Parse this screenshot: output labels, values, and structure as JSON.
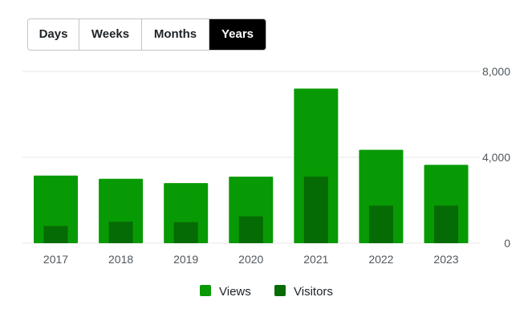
{
  "period_tabs": [
    {
      "label": "Days",
      "active": false
    },
    {
      "label": "Weeks",
      "active": false
    },
    {
      "label": "Months",
      "active": false
    },
    {
      "label": "Years",
      "active": true
    }
  ],
  "colors": {
    "views": "#089a04",
    "visitors": "#056b04",
    "active_tab_bg": "#000000",
    "grid": "#e6e7e8"
  },
  "chart_data": {
    "type": "bar",
    "categories": [
      "2017",
      "2018",
      "2019",
      "2020",
      "2021",
      "2022",
      "2023"
    ],
    "series": [
      {
        "name": "Views",
        "values": [
          3150,
          3000,
          2800,
          3100,
          7200,
          4350,
          3650
        ]
      },
      {
        "name": "Visitors",
        "values": [
          800,
          1000,
          980,
          1250,
          3100,
          1750,
          1750
        ]
      }
    ],
    "y_ticks": [
      "0",
      "4,000",
      "8,000"
    ],
    "y_tick_values": [
      0,
      4000,
      8000
    ],
    "ylim": [
      0,
      8000
    ],
    "y_axis_side": "right",
    "grid": true,
    "legend_position": "bottom-center",
    "overlapping_bars": true
  }
}
